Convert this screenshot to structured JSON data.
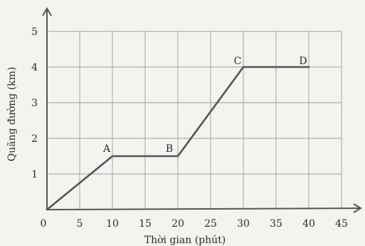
{
  "chart_data": {
    "type": "line",
    "xlabel": "Thời gian (phút)",
    "ylabel": "Quãng đường (km)",
    "xlim": [
      0,
      45
    ],
    "ylim": [
      0,
      5
    ],
    "xticks": [
      "0",
      "5",
      "10",
      "15",
      "20",
      "25",
      "30",
      "35",
      "40",
      "45"
    ],
    "yticks": [
      "1",
      "2",
      "3",
      "4",
      "5"
    ],
    "grid": true,
    "series": [
      {
        "x": [
          0,
          10,
          20,
          30,
          40
        ],
        "y": [
          0,
          1.5,
          1.5,
          4,
          4
        ]
      }
    ],
    "annotations": [
      {
        "label": "A",
        "x": 10,
        "y": 1.5
      },
      {
        "label": "B",
        "x": 20,
        "y": 1.5
      },
      {
        "label": "C",
        "x": 30,
        "y": 4
      },
      {
        "label": "D",
        "x": 40,
        "y": 4
      }
    ]
  }
}
